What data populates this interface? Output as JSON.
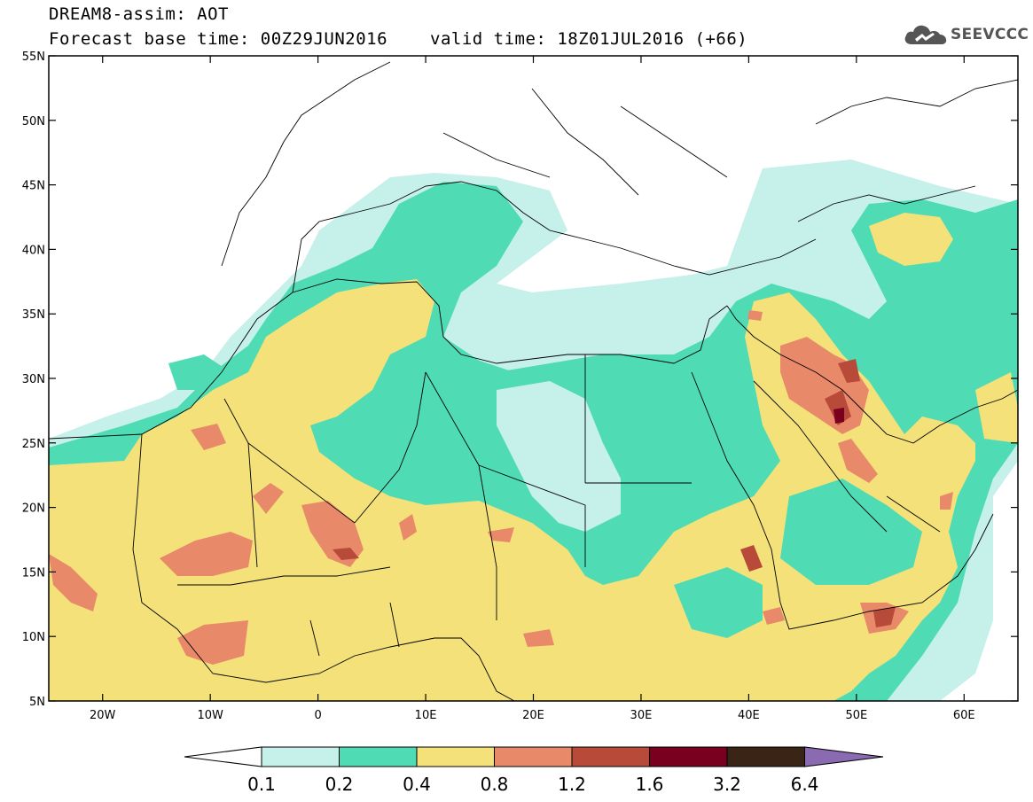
{
  "header": {
    "title_line1": "DREAM8-assim: AOT",
    "base_time": "Forecast base time: 00Z29JUN2016",
    "valid_time": "valid time: 18Z01JUL2016 (+66)"
  },
  "logo": {
    "text": "SEEVCCC",
    "icon": "cloud-icon",
    "color": "#555555"
  },
  "map": {
    "lon_range": [
      -25,
      65
    ],
    "lat_range": [
      5,
      55
    ],
    "lat_labels": [
      "55N",
      "50N",
      "45N",
      "40N",
      "35N",
      "30N",
      "25N",
      "20N",
      "15N",
      "10N",
      "5N"
    ],
    "lon_labels": [
      "20W",
      "10W",
      "0",
      "10E",
      "20E",
      "30E",
      "40E",
      "50E",
      "60E"
    ]
  },
  "legend": {
    "colors": [
      "#ffffff",
      "#c6f0ea",
      "#4fdcb4",
      "#f4e17a",
      "#e8896a",
      "#b84a3a",
      "#7a0020",
      "#3a2416",
      "#8a6ab0"
    ],
    "labels": [
      "0.1",
      "0.2",
      "0.4",
      "0.8",
      "1.2",
      "1.6",
      "3.2",
      "6.4"
    ]
  }
}
